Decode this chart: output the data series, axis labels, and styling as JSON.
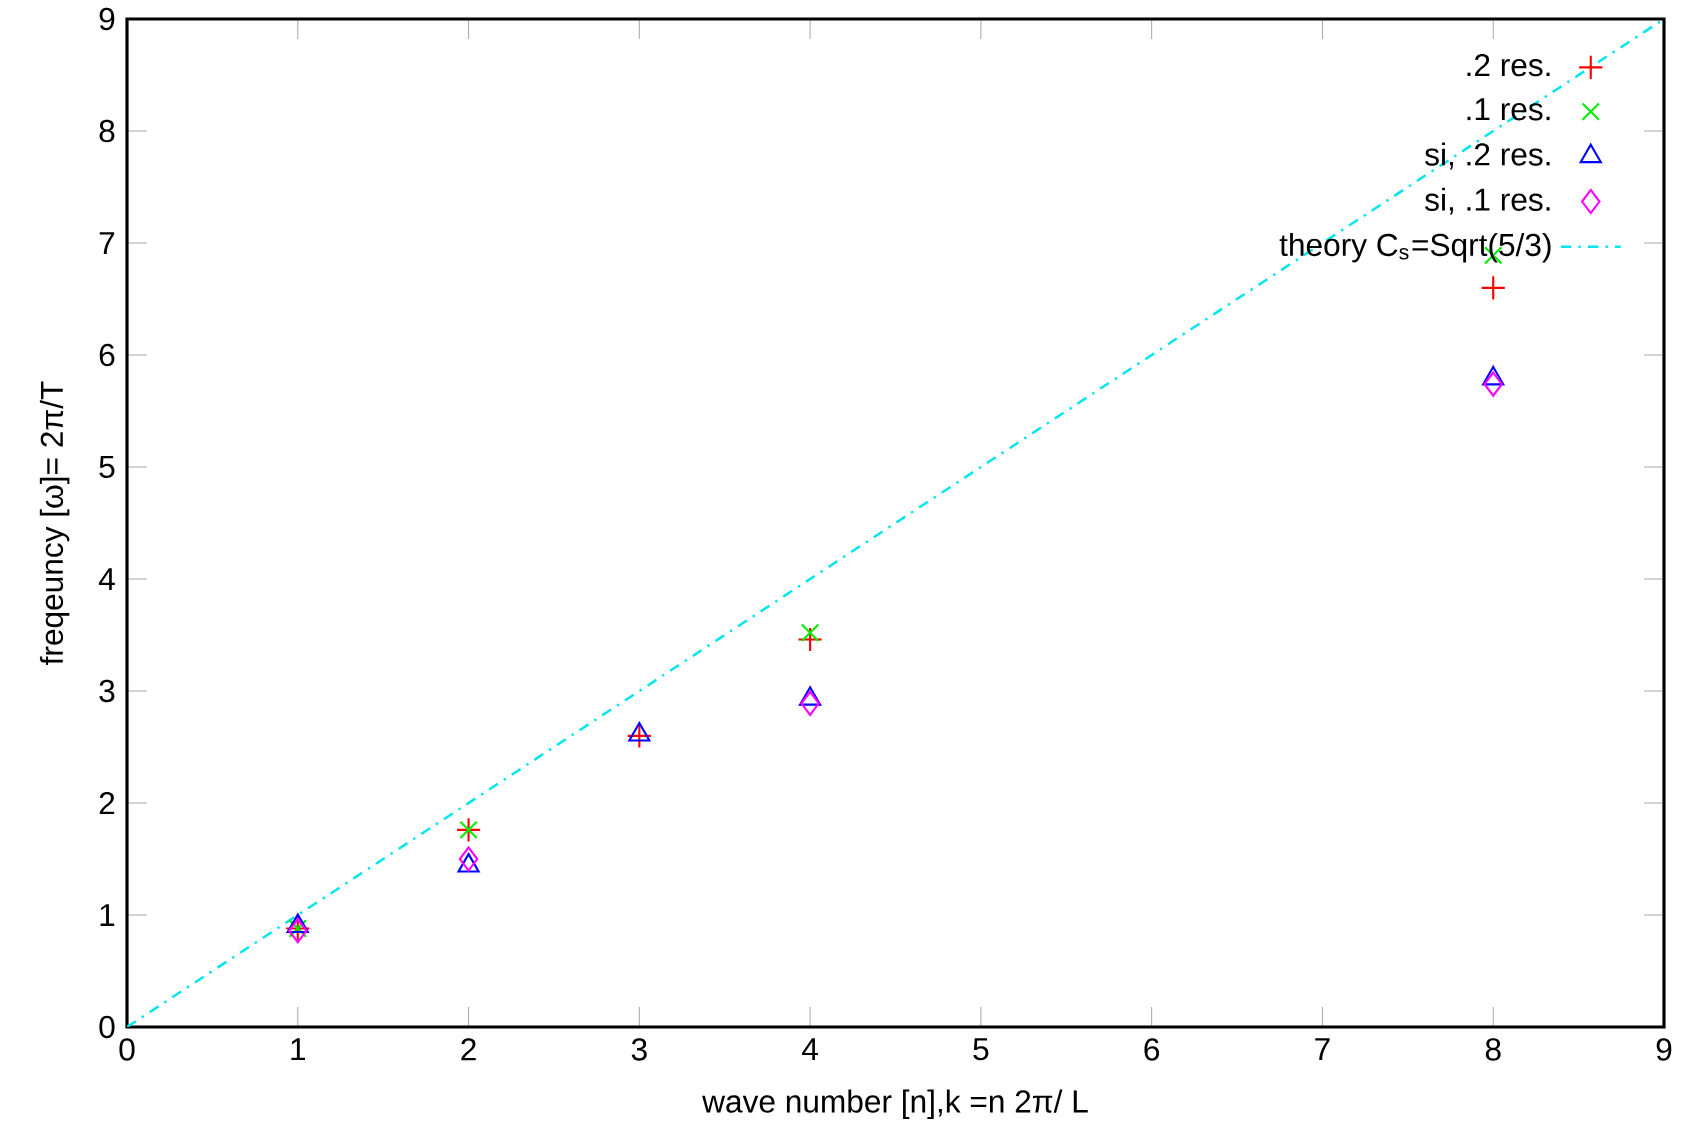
{
  "chart_data": {
    "type": "scatter",
    "xlabel": "wave number [n],k =n 2π/ L",
    "ylabel": "freqeuncy [ω]= 2π/T",
    "xlim": [
      0,
      9
    ],
    "ylim": [
      0,
      9
    ],
    "xticks": [
      0,
      1,
      2,
      3,
      4,
      5,
      6,
      7,
      8,
      9
    ],
    "yticks": [
      0,
      1,
      2,
      3,
      4,
      5,
      6,
      7,
      8,
      9
    ],
    "grid": false,
    "legend": "top right",
    "x": [
      1,
      2,
      3,
      4,
      8
    ],
    "series": [
      {
        "name": ".2 res.",
        "color": "#ff0000",
        "values": [
          0.88,
          1.76,
          2.6,
          3.46,
          6.6
        ]
      },
      {
        "name": ".1 res.",
        "color": "#00ee00",
        "marker": "cross",
        "values": [
          0.88,
          1.76,
          null,
          3.52,
          6.89
        ]
      },
      {
        "name": "si, .2 res.",
        "color": "#0000ff",
        "marker": "triangle",
        "values": [
          0.9,
          1.44,
          2.61,
          2.93,
          5.79
        ]
      },
      {
        "name": "si, .1 res.",
        "color": "#ff00ff",
        "marker": "diamond",
        "values": [
          0.86,
          1.5,
          null,
          2.89,
          5.74
        ]
      },
      {
        "name": "theory C$_{s}$=Sqrt(5/3)",
        "color": "#00e5ee",
        "type": "line",
        "marker": "none",
        "line_style": "dashdot",
        "x": [
          0,
          9
        ],
        "values": [
          0,
          9
        ]
      }
    ]
  }
}
